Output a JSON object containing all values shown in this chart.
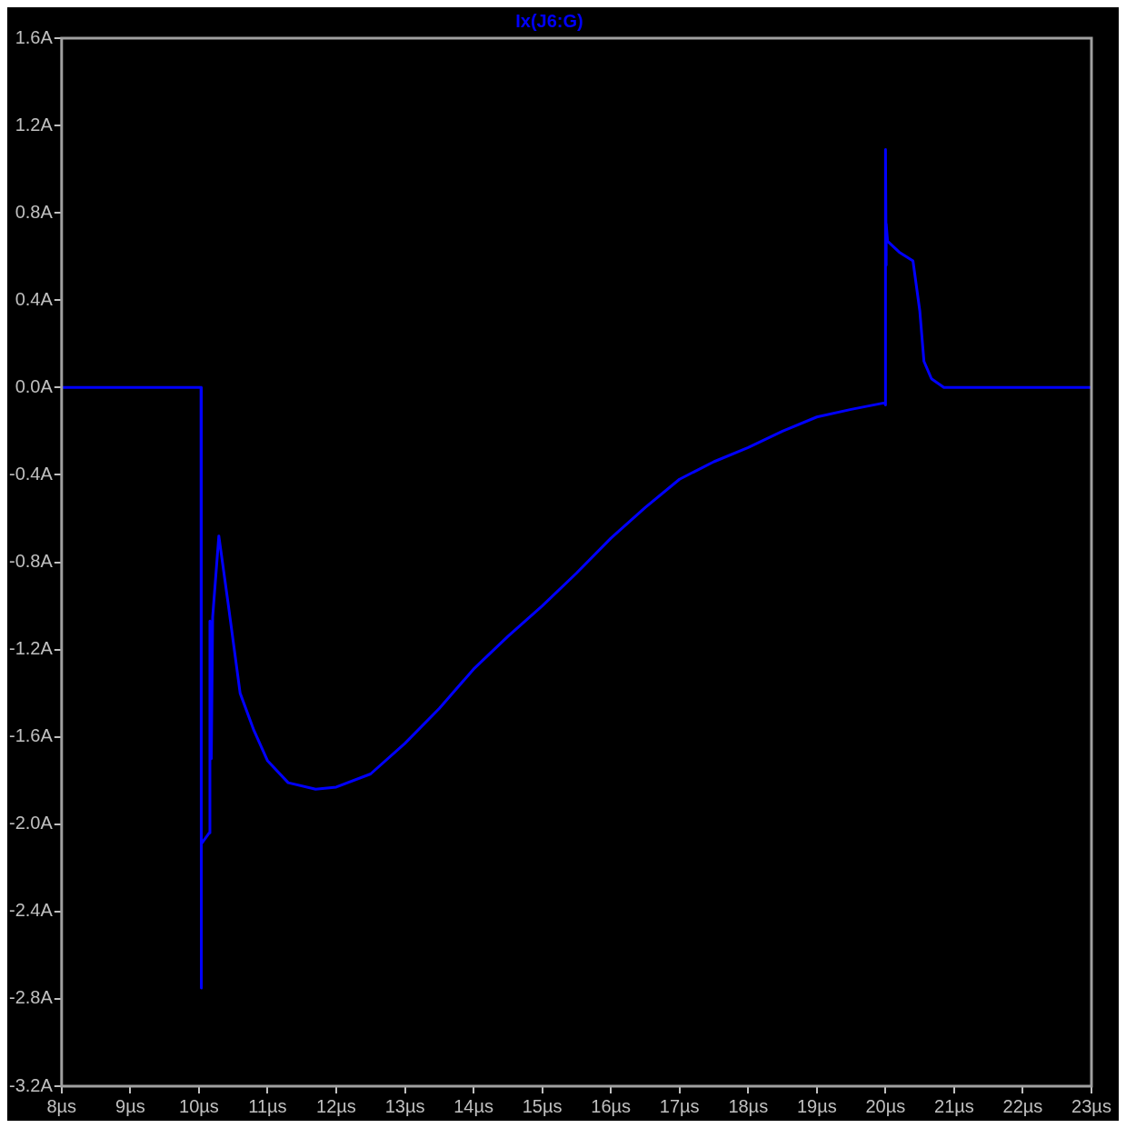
{
  "chart_data": {
    "type": "line",
    "title": "Ix(J6:G)",
    "x": [
      8,
      10.03,
      10.03,
      10.04,
      10.15,
      10.16,
      10.18,
      10.2,
      10.29,
      10.43,
      10.6,
      10.8,
      11.0,
      11.3,
      11.7,
      12,
      12.5,
      13,
      13.5,
      14,
      14.5,
      15,
      15.5,
      16,
      16.5,
      17,
      17.5,
      18,
      18.5,
      19,
      19.5,
      19.99,
      20.0,
      20.0,
      20.01,
      20.01,
      20.03,
      20.2,
      20.4,
      20.5,
      20.56,
      20.67,
      20.85,
      23
    ],
    "series": [
      {
        "color": "#0000ff",
        "values": [
          0,
          0,
          -2.75,
          -2.09,
          -2.04,
          -1.07,
          -1.7,
          -1.05,
          -0.68,
          -1.0,
          -1.4,
          -1.57,
          -1.71,
          -1.81,
          -1.84,
          -1.83,
          -1.77,
          -1.63,
          -1.47,
          -1.29,
          -1.14,
          -1.0,
          -0.85,
          -0.69,
          -0.55,
          -0.42,
          -0.34,
          -0.275,
          -0.2,
          -0.135,
          -0.1,
          -0.07,
          -0.08,
          1.09,
          0.56,
          0.75,
          0.67,
          0.62,
          0.58,
          0.35,
          0.12,
          0.04,
          0,
          0
        ]
      }
    ],
    "xlim": [
      8,
      23
    ],
    "xticks": [
      {
        "value": 8,
        "label": "8µs"
      },
      {
        "value": 9,
        "label": "9µs"
      },
      {
        "value": 10,
        "label": "10µs"
      },
      {
        "value": 11,
        "label": "11µs"
      },
      {
        "value": 12,
        "label": "12µs"
      },
      {
        "value": 13,
        "label": "13µs"
      },
      {
        "value": 14,
        "label": "14µs"
      },
      {
        "value": 15,
        "label": "15µs"
      },
      {
        "value": 16,
        "label": "16µs"
      },
      {
        "value": 17,
        "label": "17µs"
      },
      {
        "value": 18,
        "label": "18µs"
      },
      {
        "value": 19,
        "label": "19µs"
      },
      {
        "value": 20,
        "label": "20µs"
      },
      {
        "value": 21,
        "label": "21µs"
      },
      {
        "value": 22,
        "label": "22µs"
      },
      {
        "value": 23,
        "label": "23µs"
      }
    ],
    "ylim": [
      -3.2,
      1.6
    ],
    "yticks": [
      {
        "value": -3.2,
        "label": "-3.2A"
      },
      {
        "value": -2.8,
        "label": "-2.8A"
      },
      {
        "value": -2.4,
        "label": "-2.4A"
      },
      {
        "value": -2.0,
        "label": "-2.0A"
      },
      {
        "value": -1.6,
        "label": "-1.6A"
      },
      {
        "value": -1.2,
        "label": "-1.2A"
      },
      {
        "value": -0.8,
        "label": "-0.8A"
      },
      {
        "value": -0.4,
        "label": "-0.4A"
      },
      {
        "value": 0,
        "label": "0.0A"
      },
      {
        "value": 0.4,
        "label": "0.4A"
      },
      {
        "value": 0.8,
        "label": "0.8A"
      },
      {
        "value": 1.2,
        "label": "1.2A"
      },
      {
        "value": 1.6,
        "label": "1.6A"
      }
    ],
    "grid": false,
    "legend": false,
    "marker": "none",
    "line_style": "solid"
  }
}
